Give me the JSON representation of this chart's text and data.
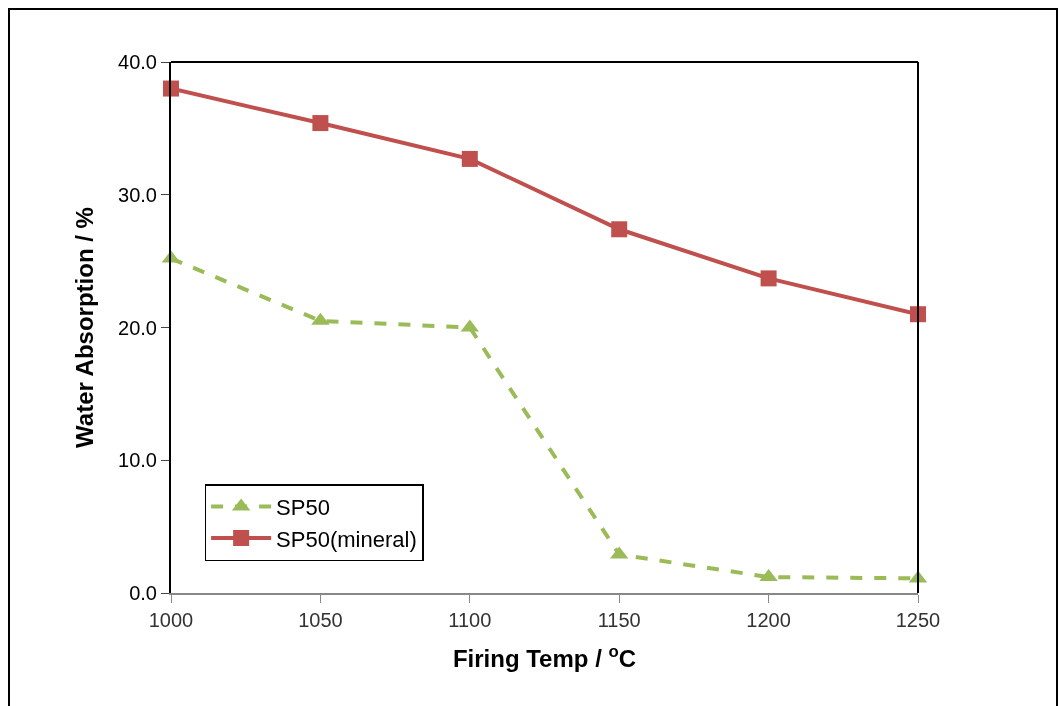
{
  "chart_data": {
    "type": "line",
    "xlabel": "Firing Temp / $^{o}$C",
    "ylabel": "Water Absorption / %",
    "x": [
      1000,
      1050,
      1100,
      1150,
      1200,
      1250
    ],
    "series": [
      {
        "name": "SP50",
        "color": "#9bbb59",
        "values": [
          25.2,
          20.5,
          20.0,
          2.9,
          1.2,
          1.1
        ],
        "marker": "triangle",
        "line_style": "dashed"
      },
      {
        "name": "SP50(mineral)",
        "color": "#c0504d",
        "values": [
          38.0,
          35.4,
          32.7,
          27.4,
          23.7,
          21.0
        ],
        "marker": "square",
        "line_style": "solid"
      }
    ],
    "xlim": [
      1000,
      1250
    ],
    "xticks": [
      1000,
      1050,
      1100,
      1150,
      1200,
      1250
    ],
    "ylim": [
      0,
      40
    ],
    "yticks": [
      {
        "value": 0,
        "label": "0.0"
      },
      {
        "value": 10,
        "label": "10.0"
      },
      {
        "value": 20,
        "label": "20.0"
      },
      {
        "value": 30,
        "label": "30.0"
      },
      {
        "value": 40,
        "label": "40.0"
      }
    ],
    "grid": false,
    "legend": "bottom left"
  }
}
